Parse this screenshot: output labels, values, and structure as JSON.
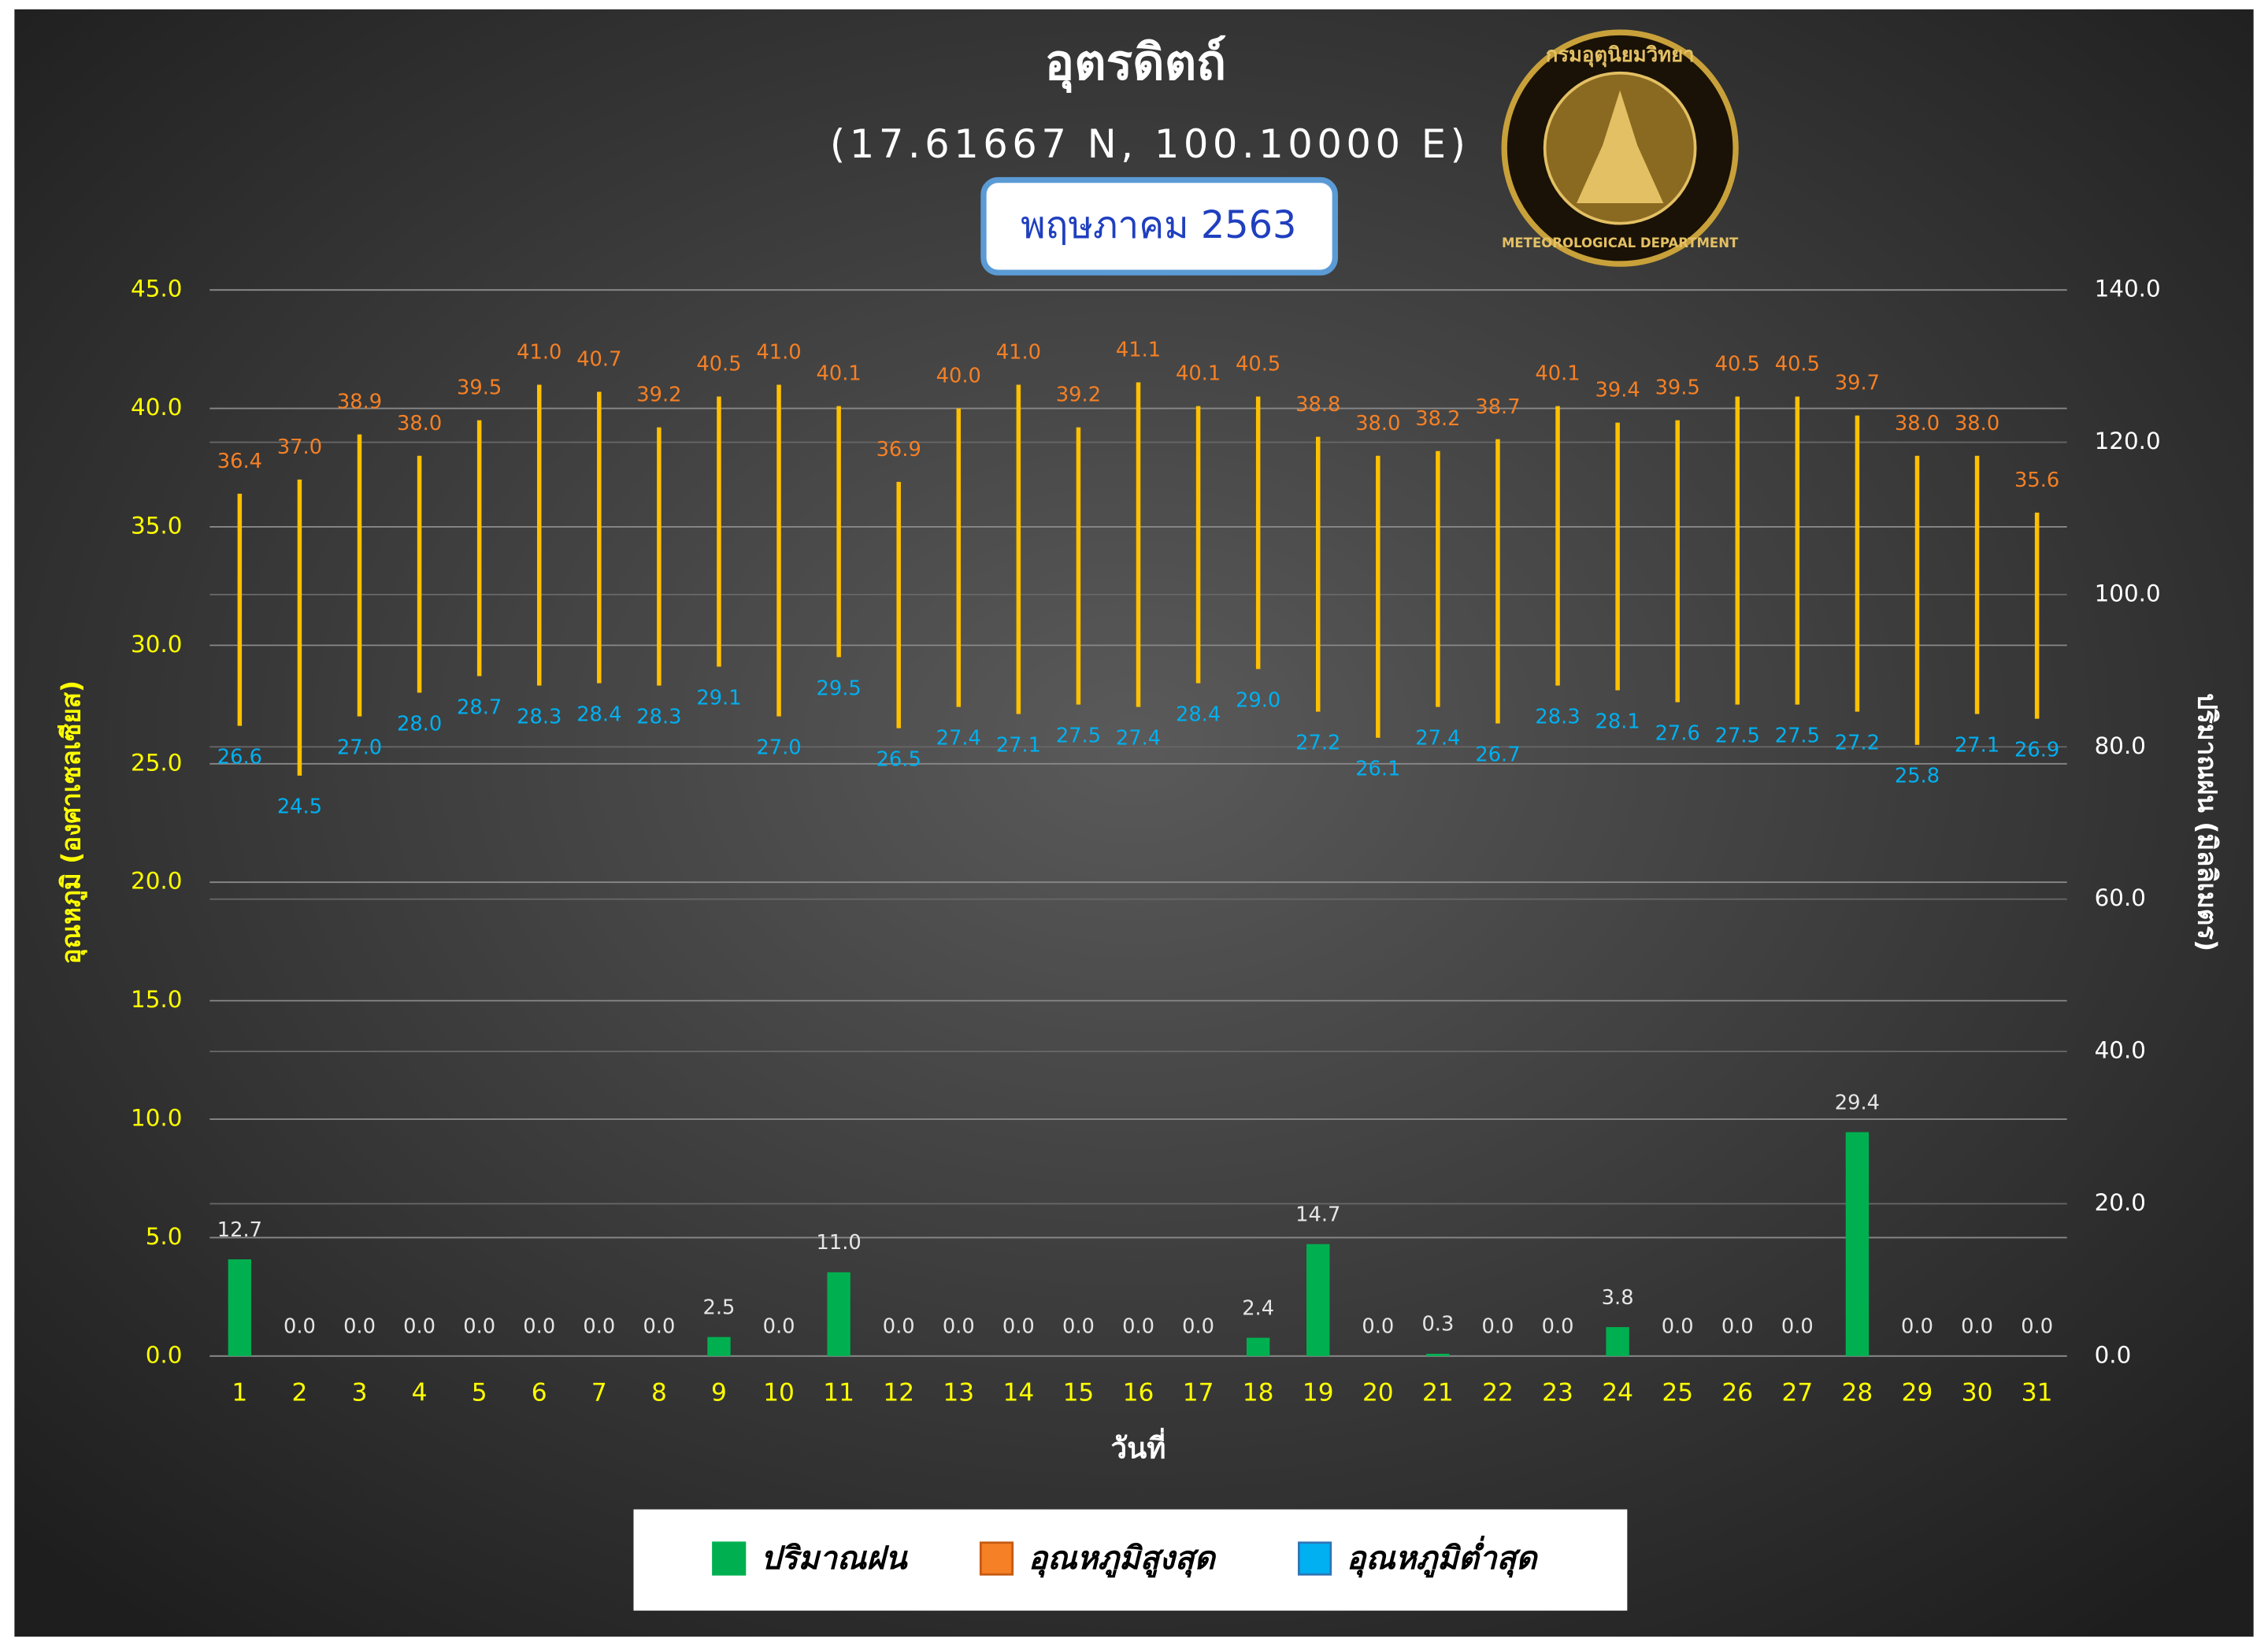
{
  "chart_data": {
    "type": "combo",
    "title": "อุตรดิตถ์",
    "subtitle": "(17.61667 N, 100.10000 E)",
    "period": "พฤษภาคม 2563",
    "annotations": [
      "กรมอุตุนิยมวิทยา",
      "METEOROLOGICAL DEPARTMENT"
    ],
    "x_label": "วันที่",
    "y_label": "อุณหภูมิ (องศาเซลเซียส)",
    "y2_label": "ปริมาณฝน (มิลลิเมตร)",
    "categories": [
      "1",
      "2",
      "3",
      "4",
      "5",
      "6",
      "7",
      "8",
      "9",
      "10",
      "11",
      "12",
      "13",
      "14",
      "15",
      "16",
      "17",
      "18",
      "19",
      "20",
      "21",
      "22",
      "23",
      "24",
      "25",
      "26",
      "27",
      "28",
      "29",
      "30",
      "31"
    ],
    "range_color": "#ffc000",
    "series": [
      {
        "name": "ปริมาณฝน",
        "color": "#00b050",
        "axis": "y2",
        "values": [
          12.7,
          0,
          0,
          0,
          0,
          0,
          0,
          0,
          2.5,
          0,
          11.0,
          0,
          0,
          0,
          0,
          0,
          0,
          2.4,
          14.7,
          0,
          0.3,
          0,
          0,
          3.8,
          0,
          0,
          0,
          29.4,
          0,
          0,
          0
        ],
        "value_labels": [
          "12.7",
          "0.0",
          "0.0",
          "0.0",
          "0.0",
          "0.0",
          "0.0",
          "0.0",
          "2.5",
          "0.0",
          "11.0",
          "0.0",
          "0.0",
          "0.0",
          "0.0",
          "0.0",
          "0.0",
          "2.4",
          "14.7",
          "0.0",
          "0.3",
          "0.0",
          "0.0",
          "3.8",
          "0.0",
          "0.0",
          "0.0",
          "29.4",
          "0.0",
          "0.0",
          "0.0"
        ]
      },
      {
        "name": "อุณหภูมิสูงสุด",
        "color": "#f58025",
        "values": [
          36.4,
          37.0,
          38.9,
          38.0,
          39.5,
          41.0,
          40.7,
          39.2,
          40.5,
          41.0,
          40.1,
          36.9,
          40.0,
          41.0,
          39.2,
          41.1,
          40.1,
          40.5,
          38.8,
          38.0,
          38.2,
          38.7,
          40.1,
          39.4,
          39.5,
          40.5,
          40.5,
          39.7,
          38.0,
          38.0,
          35.6
        ],
        "value_labels": [
          "36.4",
          "37.0",
          "38.9",
          "38.0",
          "39.5",
          "41.0",
          "40.7",
          "39.2",
          "40.5",
          "41.0",
          "40.1",
          "36.9",
          "40.0",
          "41.0",
          "39.2",
          "41.1",
          "40.1",
          "40.5",
          "38.8",
          "38.0",
          "38.2",
          "38.7",
          "40.1",
          "39.4",
          "39.5",
          "40.5",
          "40.5",
          "39.7",
          "38.0",
          "38.0",
          "35.6"
        ]
      },
      {
        "name": "อุณหภูมิต่ำสุด",
        "color": "#00b0f0",
        "values": [
          26.6,
          24.5,
          27.0,
          28.0,
          28.7,
          28.3,
          28.4,
          28.3,
          29.1,
          27.0,
          29.5,
          26.5,
          27.4,
          27.1,
          27.5,
          27.4,
          28.4,
          29.0,
          27.2,
          26.1,
          27.4,
          26.7,
          28.3,
          28.1,
          27.6,
          27.5,
          27.5,
          27.2,
          25.8,
          27.1,
          26.9
        ],
        "value_labels": [
          "26.6",
          "24.5",
          "27.0",
          "28.0",
          "28.7",
          "28.3",
          "28.4",
          "28.3",
          "29.1",
          "27.0",
          "29.5",
          "26.5",
          "27.4",
          "27.1",
          "27.5",
          "27.4",
          "28.4",
          "29.0",
          "27.2",
          "26.1",
          "27.4",
          "26.7",
          "28.3",
          "28.1",
          "27.6",
          "27.5",
          "27.5",
          "27.2",
          "25.8",
          "27.1",
          "26.9"
        ]
      }
    ],
    "ylim": [
      0,
      45
    ],
    "yticks": [
      {
        "value": 0,
        "label": "0.0"
      },
      {
        "value": 5,
        "label": "5.0"
      },
      {
        "value": 10,
        "label": "10.0"
      },
      {
        "value": 15,
        "label": "15.0"
      },
      {
        "value": 20,
        "label": "20.0"
      },
      {
        "value": 25,
        "label": "25.0"
      },
      {
        "value": 30,
        "label": "30.0"
      },
      {
        "value": 35,
        "label": "35.0"
      },
      {
        "value": 40,
        "label": "40.0"
      },
      {
        "value": 45,
        "label": "45.0"
      }
    ],
    "y2lim": [
      0,
      140
    ],
    "y2ticks": [
      {
        "value": 0,
        "label": "0.0"
      },
      {
        "value": 20,
        "label": "20.0"
      },
      {
        "value": 40,
        "label": "40.0"
      },
      {
        "value": 60,
        "label": "60.0"
      },
      {
        "value": 80,
        "label": "80.0"
      },
      {
        "value": 100,
        "label": "100.0"
      },
      {
        "value": 120,
        "label": "120.0"
      },
      {
        "value": 140,
        "label": "140.0"
      }
    ],
    "grid": true,
    "legend": "bottom"
  }
}
